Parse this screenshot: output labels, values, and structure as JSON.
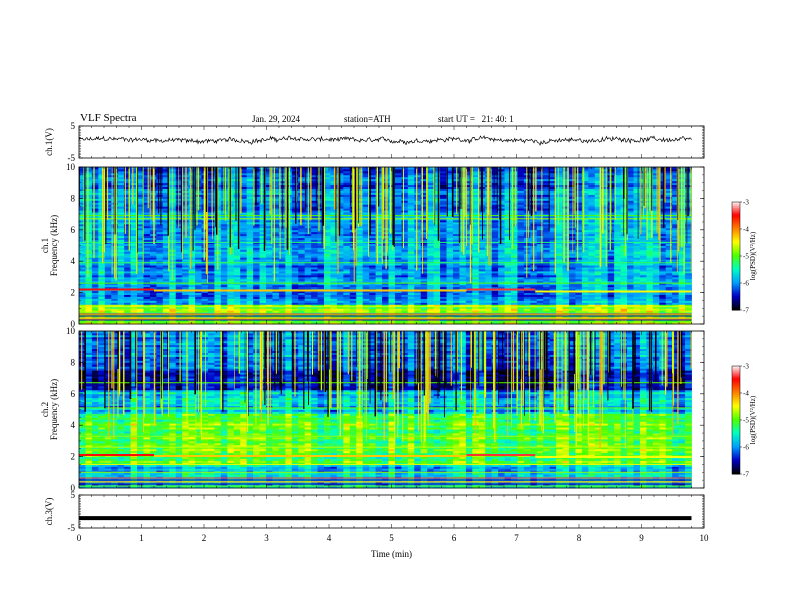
{
  "header": {
    "title": "VLF Spectra",
    "date": "Jan. 29, 2024",
    "station": "station=ATH",
    "start_ut": "start UT =   21: 40: 1"
  },
  "chart_data": [
    {
      "type": "line",
      "panel": "ch1-waveform",
      "ylabel": "ch.1(V)",
      "ylim": [
        -5,
        5
      ],
      "yticks": [
        "5",
        "-5"
      ],
      "series": [
        {
          "values": "noisy trace near 0.5 V"
        }
      ]
    },
    {
      "type": "heatmap",
      "panel": "ch1-spectrogram",
      "ylabel": [
        "ch.1",
        "Frequency (kHz)"
      ],
      "ylim": [
        0,
        10
      ],
      "yticks": [
        "0",
        "2",
        "4",
        "6",
        "8",
        "10"
      ],
      "colorbar": {
        "label": "log(PSD)(V²/Hz)",
        "range": [
          -7,
          -3
        ],
        "ticks": [
          "-3",
          "-4",
          "-5",
          "-6",
          "-7"
        ],
        "colormap": [
          "#000000",
          "#0000c8",
          "#00a0ff",
          "#00ffc0",
          "#50ff00",
          "#ffff00",
          "#ff8000",
          "#ff0000",
          "#ffffff"
        ]
      }
    },
    {
      "type": "heatmap",
      "panel": "ch2-spectrogram",
      "ylabel": [
        "ch.2",
        "Frequency (kHz)"
      ],
      "ylim": [
        0,
        10
      ],
      "yticks": [
        "0",
        "2",
        "4",
        "6",
        "8",
        "10"
      ],
      "colorbar": {
        "label": "log(PSD)(V²/Hz)",
        "range": [
          -7,
          -3
        ],
        "ticks": [
          "-3",
          "-4",
          "-5",
          "-6",
          "-7"
        ]
      }
    },
    {
      "type": "line",
      "panel": "ch3-waveform",
      "ylabel": "ch.3(V)",
      "ylim": [
        -5,
        5
      ],
      "yticks": [
        "5",
        "-5"
      ],
      "series": [
        {
          "values": "flat at about -2 V"
        }
      ]
    }
  ],
  "x_axis": {
    "label": "Time (min)",
    "range": [
      0,
      10
    ],
    "ticks": [
      "0",
      "1",
      "2",
      "3",
      "4",
      "5",
      "6",
      "7",
      "8",
      "9",
      "10"
    ],
    "data_end_min": 9.8
  }
}
